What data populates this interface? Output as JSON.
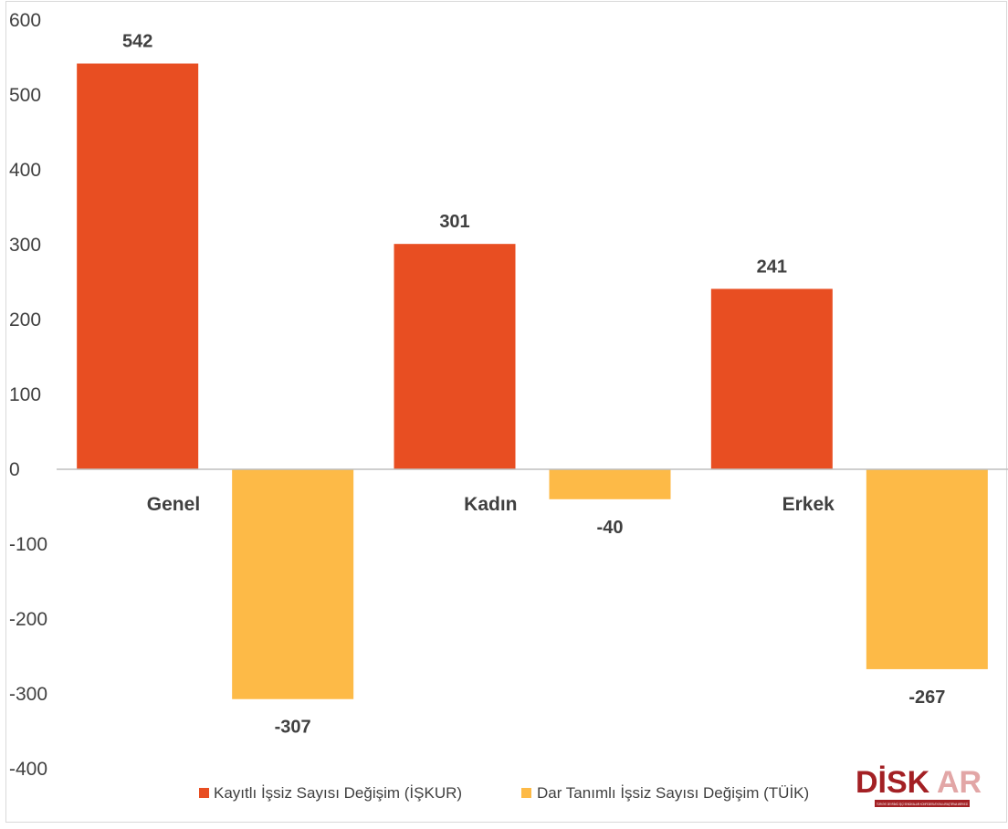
{
  "chart_data": {
    "type": "bar",
    "categories": [
      "Genel",
      "Kadın",
      "Erkek"
    ],
    "series": [
      {
        "name": "Kayıtlı İşsiz Sayısı Değişim (İŞKUR)",
        "values": [
          542,
          301,
          241
        ],
        "color": "#E84E22"
      },
      {
        "name": "Dar Tanımlı İşsiz Sayısı Değişim (TÜİK)",
        "values": [
          -307,
          -40,
          -267
        ],
        "color": "#FDBA47"
      }
    ],
    "ylim": [
      -400,
      600
    ],
    "yticks": [
      600,
      500,
      400,
      300,
      200,
      100,
      0,
      -100,
      -200,
      -300,
      -400
    ],
    "grid": false,
    "legend": "bottom"
  },
  "logo": {
    "text_main": "DİSK",
    "text_accent": "AR",
    "subtitle": "TÜRKİYE DEVRİMCİ İŞÇİ SENDİKALARI KONFEDERASYONU ARAŞTIRMA MERKEZİ",
    "colors": {
      "dark": "#A32024",
      "light": "#E2A6A6"
    }
  }
}
